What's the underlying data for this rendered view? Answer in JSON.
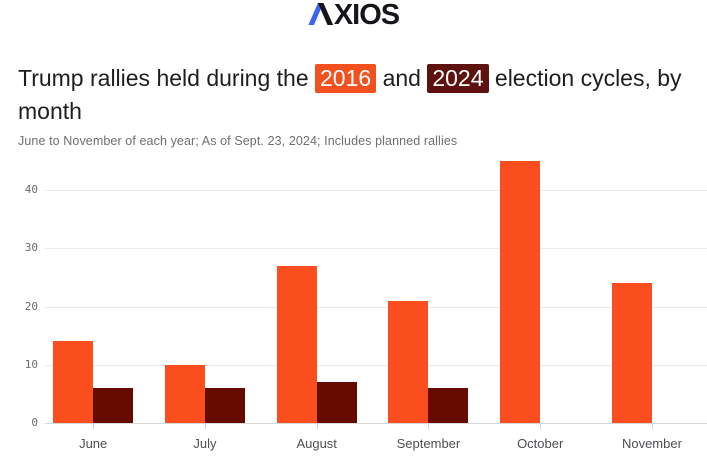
{
  "brand": {
    "name": "AXIOS",
    "wordmark_rest": "XIOS",
    "accent_blue": "#3c66f2",
    "wordmark_black": "#16161a"
  },
  "title": {
    "prefix": "Trump rallies held during the ",
    "year1": "2016",
    "middle": " and ",
    "year2": "2024",
    "suffix": " election cycles, by",
    "line2": "month",
    "highlight1_color": "#f2501f",
    "highlight2_color": "#5e1210"
  },
  "subtitle": "June to November of each year; As of Sept. 23, 2024; Includes planned rallies",
  "chart_data": {
    "type": "bar",
    "title": "Trump rallies held during the 2016 and 2024 election cycles, by month",
    "subtitle": "June to November of each year; As of Sept. 23, 2024; Includes planned rallies",
    "categories": [
      "June",
      "July",
      "August",
      "September",
      "October",
      "November"
    ],
    "series": [
      {
        "name": "2016",
        "color": "#fa4e1e",
        "values": [
          14,
          10,
          27,
          21,
          45,
          24
        ]
      },
      {
        "name": "2024",
        "color": "#670b00",
        "values": [
          6,
          6,
          7,
          6,
          0,
          0
        ]
      }
    ],
    "xlabel": "",
    "ylabel": "",
    "ylim": [
      0,
      46
    ],
    "yticks": [
      0,
      10,
      20,
      30,
      40
    ],
    "grid": true,
    "legend": "inline-in-title (years highlighted with series colors)"
  }
}
